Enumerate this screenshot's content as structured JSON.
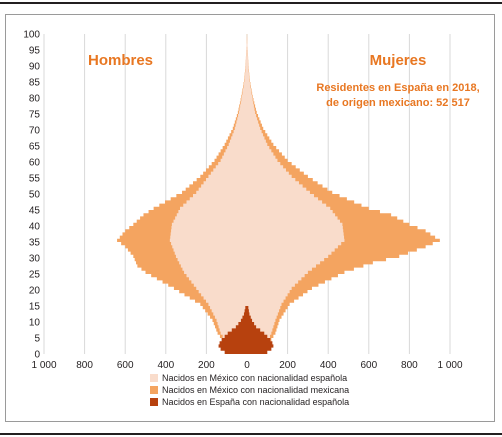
{
  "chart_data": {
    "type": "population-pyramid",
    "title": "",
    "annotations": {
      "left_label": "Hombres",
      "right_label": "Mujeres",
      "note_line1": "Residentes en España en 2018,",
      "note_line2": "de origen mexicano: 52 517"
    },
    "x_ticks": [
      {
        "label": "1 000",
        "value": -1000
      },
      {
        "label": "800",
        "value": -800
      },
      {
        "label": "600",
        "value": -600
      },
      {
        "label": "400",
        "value": -400
      },
      {
        "label": "200",
        "value": -200
      },
      {
        "label": "0",
        "value": 0
      },
      {
        "label": "200",
        "value": 200
      },
      {
        "label": "400",
        "value": 400
      },
      {
        "label": "600",
        "value": 600
      },
      {
        "label": "800",
        "value": 800
      },
      {
        "label": "1 000",
        "value": 1000
      }
    ],
    "y_ticks": [
      "0",
      "5",
      "10",
      "15",
      "20",
      "25",
      "30",
      "35",
      "40",
      "45",
      "50",
      "55",
      "60",
      "65",
      "70",
      "75",
      "80",
      "85",
      "90",
      "95",
      "100"
    ],
    "x_range": [
      -1000,
      1000
    ],
    "y_range": [
      0,
      100
    ],
    "grid": "vertical",
    "legend_position": "bottom",
    "colors": {
      "mexican_es_nat": "#f9dccb",
      "mexican_mx_nat": "#f4a460",
      "spain_es_nat": "#b7410e"
    },
    "legend": [
      {
        "key": "mexican_es_nat",
        "label": "Nacidos en México con nacionalidad española"
      },
      {
        "key": "mexican_mx_nat",
        "label": "Nacidos en México con nacionalidad mexicana"
      },
      {
        "key": "spain_es_nat",
        "label": "Nacidos en España con nacionalidad española"
      }
    ],
    "series": [
      {
        "key": "mexican_es_nat",
        "men_ages": [
          0,
          3,
          6,
          10,
          15,
          20,
          25,
          30,
          35,
          40,
          45,
          50,
          55,
          60,
          65,
          70,
          75,
          80,
          85,
          90,
          95,
          100
        ],
        "men_values": [
          40,
          100,
          130,
          150,
          190,
          250,
          310,
          350,
          380,
          370,
          330,
          250,
          190,
          130,
          90,
          60,
          40,
          25,
          12,
          6,
          3,
          0
        ],
        "women_ages": [
          0,
          3,
          6,
          10,
          15,
          20,
          25,
          30,
          35,
          40,
          45,
          50,
          55,
          60,
          65,
          70,
          75,
          80,
          85,
          90,
          95,
          100
        ],
        "women_values": [
          40,
          100,
          120,
          140,
          170,
          220,
          300,
          400,
          480,
          470,
          410,
          310,
          220,
          150,
          100,
          65,
          40,
          25,
          12,
          6,
          3,
          0
        ]
      },
      {
        "key": "mexican_mx_nat",
        "men_ages": [
          0,
          3,
          6,
          10,
          15,
          20,
          25,
          27,
          30,
          33,
          35,
          38,
          40,
          43,
          45,
          50,
          55,
          60,
          65,
          70,
          75,
          80,
          85,
          90,
          95,
          100
        ],
        "men_values": [
          45,
          110,
          145,
          170,
          230,
          360,
          500,
          540,
          560,
          600,
          640,
          600,
          560,
          510,
          460,
          320,
          230,
          160,
          110,
          70,
          45,
          28,
          14,
          7,
          3,
          0
        ],
        "women_ages": [
          0,
          3,
          6,
          10,
          15,
          20,
          25,
          28,
          30,
          33,
          35,
          38,
          40,
          43,
          45,
          50,
          55,
          60,
          65,
          70,
          75,
          80,
          85,
          90,
          95,
          100
        ],
        "women_values": [
          45,
          110,
          140,
          160,
          210,
          320,
          480,
          620,
          750,
          880,
          950,
          880,
          800,
          710,
          600,
          420,
          300,
          200,
          130,
          80,
          48,
          28,
          14,
          7,
          3,
          0
        ]
      },
      {
        "key": "spain_es_nat",
        "men_ages": [
          0,
          1,
          2,
          3,
          4,
          5,
          6,
          7,
          8,
          10,
          12,
          15
        ],
        "men_values": [
          110,
          130,
          140,
          135,
          125,
          110,
          95,
          75,
          55,
          30,
          15,
          5
        ],
        "women_ages": [
          0,
          1,
          2,
          3,
          4,
          5,
          6,
          7,
          8,
          10,
          12,
          15
        ],
        "women_values": [
          100,
          120,
          130,
          125,
          115,
          100,
          85,
          65,
          45,
          25,
          12,
          4
        ]
      }
    ]
  }
}
